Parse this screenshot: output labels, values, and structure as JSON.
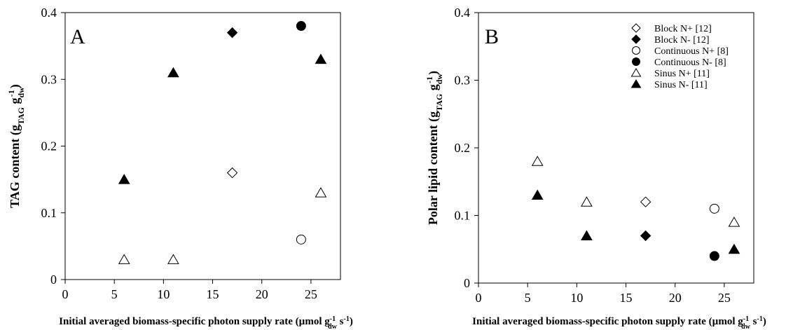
{
  "chart_data": [
    {
      "type": "scatter",
      "panel_label": "A",
      "xlabel": {
        "main": "Initial averaged biomass-specific photon supply rate (µmol g",
        "sup": "-1",
        "sub": "dw",
        "tail": " s",
        "tail_sup": "-1",
        "close": ")"
      },
      "ylabel": {
        "main": "TAG content (g",
        "sub1": "TAG",
        "mid": " g",
        "sub2": "dw",
        "sup2": "-1",
        "close": ")"
      },
      "xlim": [
        0,
        28
      ],
      "ylim": [
        0,
        0.4
      ],
      "xticks": [
        0,
        5,
        10,
        15,
        20,
        25
      ],
      "xtick_labels": [
        "0",
        "5",
        "10",
        "15",
        "20",
        "25"
      ],
      "yticks": [
        0,
        0.1,
        0.2,
        0.3,
        0.4
      ],
      "ytick_labels": [
        "0",
        "0.1",
        "0.2",
        "0.3",
        "0.4"
      ],
      "grid": false,
      "legend": false,
      "series": [
        {
          "key": "block_np",
          "marker": "diamond-open",
          "points": [
            [
              17,
              0.16
            ]
          ]
        },
        {
          "key": "block_nm",
          "marker": "diamond-filled",
          "points": [
            [
              17,
              0.37
            ]
          ]
        },
        {
          "key": "cont_np",
          "marker": "circle-open",
          "points": [
            [
              24,
              0.06
            ]
          ]
        },
        {
          "key": "cont_nm",
          "marker": "circle-filled",
          "points": [
            [
              24,
              0.38
            ]
          ]
        },
        {
          "key": "sinus_np",
          "marker": "triangle-open",
          "points": [
            [
              6,
              0.03
            ],
            [
              11,
              0.03
            ],
            [
              26,
              0.13
            ]
          ]
        },
        {
          "key": "sinus_nm",
          "marker": "triangle-filled",
          "points": [
            [
              6,
              0.15
            ],
            [
              11,
              0.31
            ],
            [
              26,
              0.33
            ]
          ]
        }
      ]
    },
    {
      "type": "scatter",
      "panel_label": "B",
      "xlabel": {
        "main": "Initial averaged biomass-specific photon supply rate (µmol g",
        "sup": "-1",
        "sub": "dw",
        "tail": " s",
        "tail_sup": "-1",
        "close": ")"
      },
      "ylabel": {
        "main": "Polar lipid content (g",
        "sub1": "TAG",
        "mid": " g",
        "sub2": "dw",
        "sup2": "-1",
        "close": ")"
      },
      "xlim": [
        0,
        28
      ],
      "ylim": [
        0,
        0.4
      ],
      "xticks": [
        0,
        5,
        10,
        15,
        20,
        25
      ],
      "xtick_labels": [
        "0",
        "5",
        "10",
        "15",
        "20",
        "25"
      ],
      "yticks": [
        0,
        0.1,
        0.2,
        0.3,
        0.4
      ],
      "ytick_labels": [
        "0",
        "0.1",
        "0.2",
        "0.3",
        "0.4"
      ],
      "grid": false,
      "legend": true,
      "legend_placement": "top-right",
      "series": [
        {
          "key": "block_np",
          "name": "Block N+ [12]",
          "marker": "diamond-open",
          "points": [
            [
              17,
              0.12
            ]
          ]
        },
        {
          "key": "block_nm",
          "name": "Block N- [12]",
          "marker": "diamond-filled",
          "points": [
            [
              17,
              0.07
            ]
          ]
        },
        {
          "key": "cont_np",
          "name": "Continuous N+ [8]",
          "marker": "circle-open",
          "points": [
            [
              24,
              0.11
            ]
          ]
        },
        {
          "key": "cont_nm",
          "name": "Continuous N- [8]",
          "marker": "circle-filled",
          "points": [
            [
              24,
              0.04
            ]
          ]
        },
        {
          "key": "sinus_np",
          "name": "Sinus N+ [11]",
          "marker": "triangle-open",
          "points": [
            [
              6,
              0.18
            ],
            [
              11,
              0.12
            ],
            [
              26,
              0.09
            ]
          ]
        },
        {
          "key": "sinus_nm",
          "name": "Sinus N- [11]",
          "marker": "triangle-filled",
          "points": [
            [
              6,
              0.13
            ],
            [
              11,
              0.07
            ],
            [
              26,
              0.05
            ]
          ]
        }
      ]
    }
  ]
}
